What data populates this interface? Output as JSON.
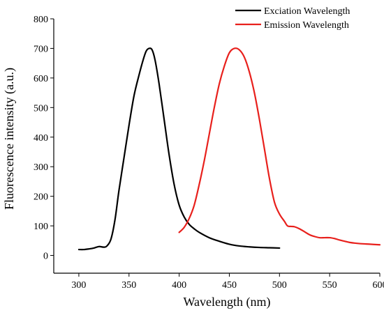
{
  "chart_data": {
    "type": "line",
    "title": "",
    "xlabel": "Wavelength (nm)",
    "ylabel": "Fluorescence intensity (a.u.)",
    "xlim": [
      275,
      600
    ],
    "ylim": [
      -60,
      800
    ],
    "xticks": [
      300,
      350,
      400,
      450,
      500,
      550,
      600
    ],
    "yticks": [
      0,
      100,
      200,
      300,
      400,
      500,
      600,
      700,
      800
    ],
    "grid": false,
    "legend_position": "top-right",
    "series": [
      {
        "name": "Exciation Wavelength",
        "color": "#000000",
        "x": [
          300,
          305,
          310,
          315,
          320,
          325,
          328,
          332,
          336,
          340,
          345,
          350,
          355,
          360,
          364,
          367,
          370,
          373,
          376,
          380,
          385,
          390,
          395,
          400,
          405,
          410,
          415,
          420,
          430,
          440,
          450,
          460,
          470,
          480,
          490,
          500
        ],
        "y": [
          20,
          20,
          22,
          25,
          30,
          28,
          32,
          55,
          120,
          220,
          330,
          440,
          540,
          610,
          660,
          690,
          700,
          695,
          660,
          580,
          460,
          340,
          240,
          170,
          130,
          105,
          90,
          78,
          60,
          48,
          38,
          32,
          29,
          27,
          26,
          25
        ]
      },
      {
        "name": "Emission Wavelength",
        "color": "#e8201c",
        "x": [
          400,
          405,
          410,
          415,
          420,
          425,
          430,
          435,
          440,
          445,
          450,
          455,
          460,
          465,
          470,
          475,
          480,
          485,
          490,
          495,
          500,
          505,
          508,
          512,
          515,
          520,
          525,
          530,
          535,
          540,
          545,
          550,
          555,
          560,
          565,
          570,
          580,
          590,
          600
        ],
        "y": [
          78,
          95,
          125,
          170,
          240,
          320,
          410,
          500,
          580,
          640,
          685,
          700,
          695,
          670,
          620,
          550,
          460,
          360,
          260,
          180,
          140,
          115,
          100,
          98,
          97,
          90,
          80,
          70,
          64,
          60,
          60,
          60,
          57,
          52,
          48,
          44,
          40,
          38,
          36
        ]
      }
    ]
  }
}
